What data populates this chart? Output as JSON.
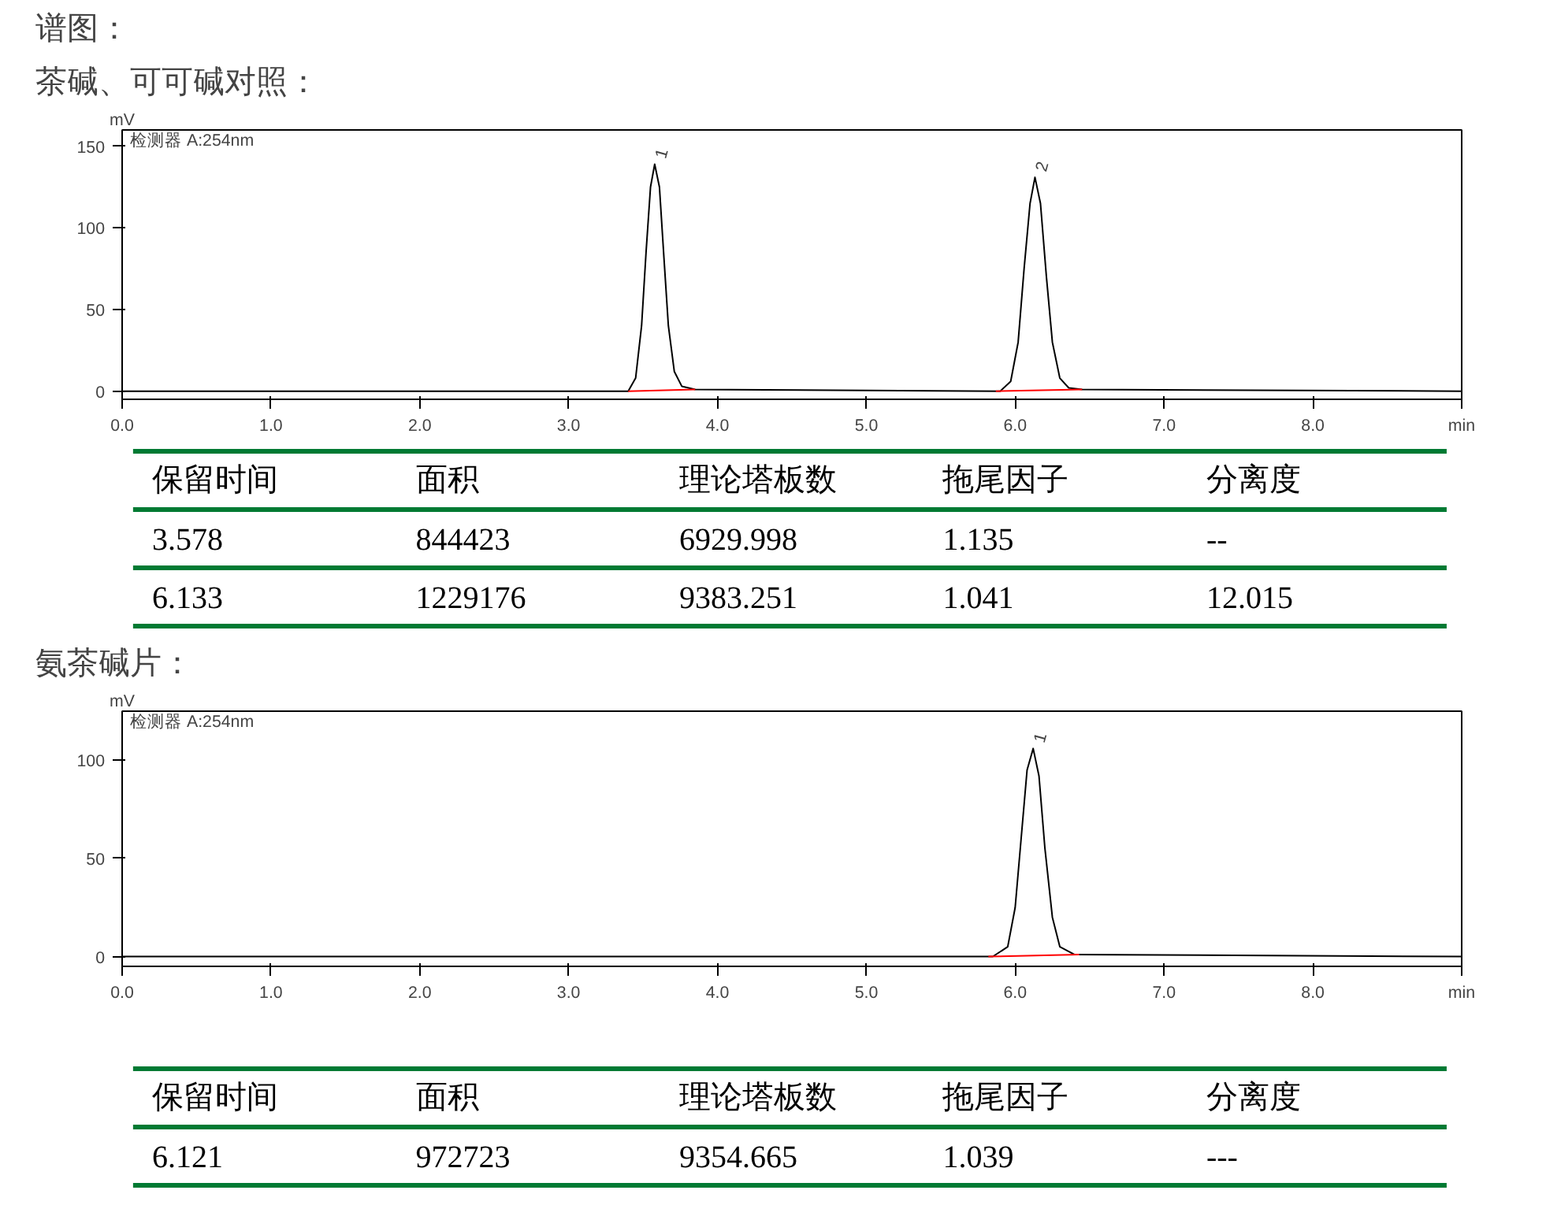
{
  "chart_data": [
    {
      "type": "line",
      "title": "谱图：",
      "subtitle": "茶碱、可可碱对照：",
      "ylabel": "mV",
      "xlim": [
        0,
        9
      ],
      "ylim": [
        -5,
        160
      ],
      "xticks": [
        {
          "value": 0,
          "label": "0.0"
        },
        {
          "value": 1,
          "label": "1.0"
        },
        {
          "value": 2,
          "label": "2.0"
        },
        {
          "value": 3,
          "label": "3.0"
        },
        {
          "value": 4,
          "label": "4.0"
        },
        {
          "value": 5,
          "label": "5.0"
        },
        {
          "value": 6,
          "label": "6.0"
        },
        {
          "value": 7,
          "label": "7.0"
        },
        {
          "value": 8,
          "label": "8.0"
        },
        {
          "value": 9,
          "label": "min"
        }
      ],
      "yticks": [
        0,
        50,
        100,
        150
      ],
      "grid": false,
      "annotations": [
        "检测器 A:254nm",
        {
          "text": "1",
          "x": 3.578,
          "y": 139
        },
        {
          "text": "2",
          "x": 6.133,
          "y": 131
        }
      ],
      "series": [
        {
          "color": "#000000",
          "x": [
            0,
            3.4,
            3.45,
            3.49,
            3.52,
            3.55,
            3.578,
            3.61,
            3.64,
            3.67,
            3.71,
            3.76,
            3.85,
            5.9,
            5.97,
            6.02,
            6.06,
            6.1,
            6.133,
            6.17,
            6.21,
            6.25,
            6.3,
            6.36,
            6.45,
            9.0
          ],
          "values": [
            0,
            0,
            8,
            40,
            85,
            125,
            139,
            125,
            82,
            40,
            12,
            3,
            1,
            0,
            6,
            30,
            75,
            115,
            131,
            115,
            70,
            30,
            8,
            2,
            1,
            0
          ]
        },
        {
          "color": "#ff0000",
          "x": [
            3.4,
            3.85
          ],
          "values": [
            0,
            1
          ]
        },
        {
          "color": "#ff0000",
          "x": [
            5.87,
            6.45
          ],
          "values": [
            0,
            1
          ]
        }
      ]
    },
    {
      "type": "other",
      "categories": [
        "保留时间",
        "面积",
        "理论塔板数",
        "拖尾因子",
        "分离度"
      ],
      "annotations": [
        "3.578",
        "844423",
        "6929.998",
        "1.135",
        "--",
        "6.133",
        "1229176",
        "9383.251",
        "1.041",
        "12.015"
      ]
    },
    {
      "type": "line",
      "title": "氨茶碱片：",
      "ylabel": "mV",
      "xlim": [
        0,
        9
      ],
      "ylim": [
        -5,
        125
      ],
      "xticks": [
        {
          "value": 0,
          "label": "0.0"
        },
        {
          "value": 1,
          "label": "1.0"
        },
        {
          "value": 2,
          "label": "2.0"
        },
        {
          "value": 3,
          "label": "3.0"
        },
        {
          "value": 4,
          "label": "4.0"
        },
        {
          "value": 5,
          "label": "5.0"
        },
        {
          "value": 6,
          "label": "6.0"
        },
        {
          "value": 7,
          "label": "7.0"
        },
        {
          "value": 8,
          "label": "8.0"
        },
        {
          "value": 9,
          "label": "min"
        }
      ],
      "yticks": [
        0,
        50,
        100
      ],
      "grid": false,
      "annotations": [
        "检测器 A:254nm",
        {
          "text": "1",
          "x": 6.121,
          "y": 106
        }
      ],
      "series": [
        {
          "color": "#000000",
          "x": [
            0,
            5.85,
            5.95,
            6.0,
            6.04,
            6.08,
            6.121,
            6.16,
            6.2,
            6.25,
            6.3,
            6.4,
            9.0
          ],
          "values": [
            0,
            0,
            5,
            25,
            60,
            95,
            106,
            92,
            55,
            20,
            5,
            1,
            0
          ]
        },
        {
          "color": "#ff0000",
          "x": [
            5.82,
            6.43
          ],
          "values": [
            0,
            1
          ]
        }
      ]
    },
    {
      "type": "other",
      "categories": [
        "保留时间",
        "面积",
        "理论塔板数",
        "拖尾因子",
        "分离度"
      ],
      "annotations": [
        "6.121",
        "972723",
        "9354.665",
        "1.039",
        "---"
      ]
    }
  ]
}
